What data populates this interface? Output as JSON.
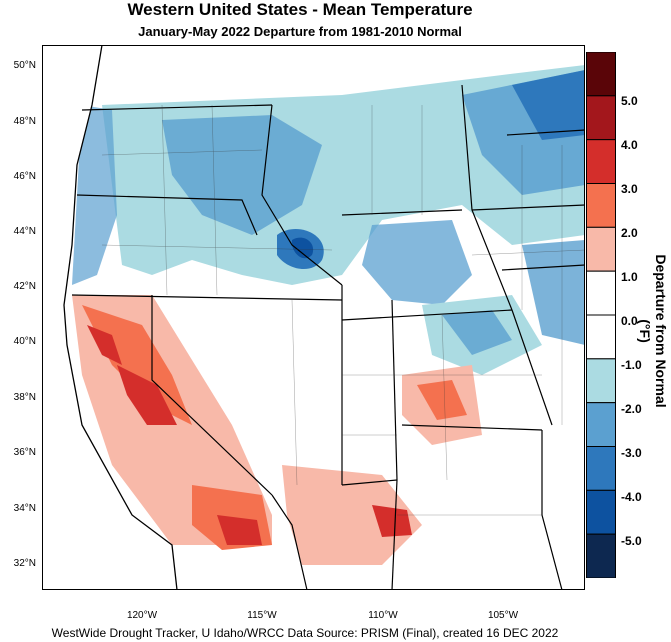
{
  "title": "Western United States - Mean Temperature",
  "subtitle": "January-May 2022  Departure from 1981-2010 Normal",
  "footer": "WestWide Drought Tracker, U Idaho/WRCC Data Source: PRISM (Final), created 16 DEC 2022",
  "colorbar": {
    "title": "Departure from Normal (°F)",
    "labels": [
      "5.0",
      "4.0",
      "3.0",
      "2.0",
      "1.0",
      "0.0",
      "-1.0",
      "-2.0",
      "-3.0",
      "-4.0",
      "-5.0"
    ],
    "colors": [
      "#5a0508",
      "#a3171c",
      "#d42e2b",
      "#f4714f",
      "#f8b9a9",
      "#ffffff",
      "#ffffff",
      "#abdbe2",
      "#5ba0d0",
      "#2e78bc",
      "#0d52a0",
      "#0d2850"
    ]
  },
  "axes": {
    "lat_labels": [
      "50°N",
      "48°N",
      "46°N",
      "44°N",
      "42°N",
      "40°N",
      "38°N",
      "36°N",
      "34°N",
      "32°N"
    ],
    "lon_labels": [
      "120°W",
      "115°W",
      "110°W",
      "105°W"
    ]
  }
}
